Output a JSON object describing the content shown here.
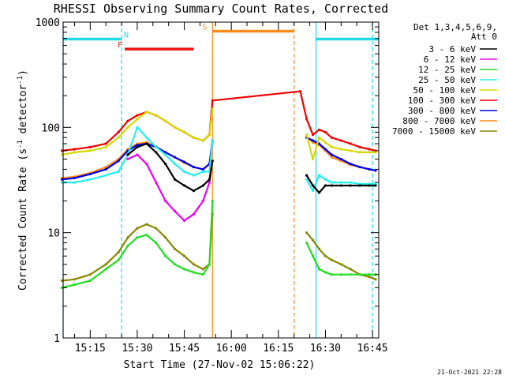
{
  "chart_data": {
    "type": "line",
    "title": "RHESSI Observing Summary Count Rates, Corrected",
    "xlabel": "Start Time (27-Nov-02 15:06:22)",
    "ylabel": "Corrected Count Rate (s⁻¹ detector⁻¹)",
    "ylabel_main": "Corrected Count Rate (s",
    "ylabel_sup1": "-1",
    "ylabel_mid": " detector",
    "ylabel_sup2": "-1",
    "ylabel_end": ")",
    "y_scale": "log",
    "ylim": [
      1,
      1000
    ],
    "xlim": [
      "15:06:22",
      "16:47:00"
    ],
    "x_ticks": [
      "15:15",
      "15:30",
      "15:45",
      "16:00",
      "16:15",
      "16:30",
      "16:45"
    ],
    "y_ticks": [
      "1",
      "10",
      "100",
      "1000"
    ],
    "legend_title": "Det 1,3,4,5,6,9,",
    "legend_subtitle": "Att 0",
    "footer_date": "21-Oct-2021 22:28",
    "flags": [
      {
        "label": "N",
        "color": "#22d8e8",
        "start": "15:06:22",
        "end": "15:25:00",
        "level": 690,
        "label_at": "15:26:30"
      },
      {
        "label": "N",
        "color": "#22d8e8",
        "start": "16:27:00",
        "end": "16:47:00",
        "level": 690,
        "label_at": null
      },
      {
        "label": "F",
        "color": "#ee1111",
        "start": "15:26:00",
        "end": "15:48:00",
        "level": 555,
        "label_at": "15:24:30"
      },
      {
        "label": "S",
        "color": "#ff8c1a",
        "start": "15:54:00",
        "end": "16:20:00",
        "level": 820,
        "label_at": "15:51:30"
      }
    ],
    "boundaries": [
      {
        "time": "15:06:22",
        "color": "#22d8e8",
        "style": "solid"
      },
      {
        "time": "15:25:00",
        "color": "#22d8e8",
        "style": "dashed"
      },
      {
        "time": "15:54:00",
        "color": "#ff8c1a",
        "style": "solid"
      },
      {
        "time": "16:20:00",
        "color": "#ff8c1a",
        "style": "dashed"
      },
      {
        "time": "16:27:00",
        "color": "#22d8e8",
        "style": "solid"
      },
      {
        "time": "16:45:00",
        "color": "#22d8e8",
        "style": "dashed"
      }
    ],
    "x": [
      "15:06",
      "15:10",
      "15:15",
      "15:20",
      "15:24",
      "15:27",
      "15:30",
      "15:33",
      "15:36",
      "15:39",
      "15:42",
      "15:45",
      "15:48",
      "15:51",
      "15:53",
      "15:54",
      "16:22",
      "16:24",
      "16:26",
      "16:28",
      "16:30",
      "16:32",
      "16:35",
      "16:38",
      "16:41",
      "16:44",
      "16:46"
    ],
    "series": [
      {
        "name": "3 - 6 keV",
        "color": "#000000",
        "values": [
          null,
          null,
          null,
          null,
          null,
          55,
          65,
          70,
          58,
          45,
          32,
          28,
          25,
          28,
          32,
          48,
          null,
          35,
          28,
          24,
          28,
          28,
          28,
          28,
          28,
          28,
          28
        ]
      },
      {
        "name": "6 - 12 keV",
        "color": "#ee00ee",
        "values": [
          null,
          null,
          null,
          null,
          null,
          50,
          55,
          45,
          30,
          20,
          16,
          13,
          15,
          20,
          30,
          48,
          null,
          null,
          null,
          null,
          null,
          null,
          null,
          null,
          null,
          null,
          null
        ]
      },
      {
        "name": "12 - 25 keV",
        "color": "#22dd22",
        "values": [
          3,
          3.2,
          3.5,
          4.5,
          5.5,
          7.5,
          9,
          9.5,
          8,
          6,
          5,
          4.5,
          4.2,
          4,
          5,
          20,
          null,
          8,
          6,
          4.5,
          4.2,
          4,
          4,
          4,
          4,
          4,
          4
        ]
      },
      {
        "name": "25 - 50 keV",
        "color": "#22f0f0",
        "values": [
          30,
          30,
          32,
          35,
          38,
          55,
          100,
          80,
          65,
          55,
          45,
          38,
          35,
          38,
          38,
          75,
          null,
          32,
          25,
          35,
          32,
          30,
          30,
          30,
          29,
          29,
          29
        ]
      },
      {
        "name": "50 - 100 keV",
        "color": "#d8d800",
        "values": [
          55,
          58,
          60,
          65,
          80,
          100,
          120,
          140,
          130,
          115,
          100,
          90,
          80,
          75,
          85,
          150,
          null,
          85,
          50,
          80,
          72,
          65,
          62,
          60,
          58,
          58,
          58
        ]
      },
      {
        "name": "100 - 300 keV",
        "color": "#ee0000",
        "values": [
          60,
          62,
          65,
          70,
          90,
          115,
          130,
          140,
          130,
          115,
          100,
          90,
          80,
          75,
          85,
          180,
          220,
          120,
          85,
          95,
          90,
          80,
          75,
          70,
          65,
          62,
          60
        ]
      },
      {
        "name": "300 - 800 keV",
        "color": "#0000ee",
        "values": [
          32,
          33,
          36,
          40,
          48,
          60,
          68,
          70,
          65,
          58,
          52,
          47,
          42,
          40,
          45,
          75,
          null,
          80,
          75,
          70,
          62,
          55,
          50,
          45,
          42,
          40,
          39
        ]
      },
      {
        "name": "800 - 7000 keV",
        "color": "#ff8c1a",
        "values": [
          33,
          34,
          37,
          42,
          50,
          62,
          70,
          72,
          66,
          58,
          52,
          46,
          42,
          40,
          45,
          72,
          null,
          82,
          72,
          68,
          60,
          52,
          48,
          44,
          42,
          40,
          39
        ]
      },
      {
        "name": "7000 - 15000 keV",
        "color": "#888800",
        "values": [
          3.5,
          3.6,
          4,
          5,
          6.5,
          9,
          11,
          12,
          11,
          9,
          7,
          6,
          5,
          4.5,
          5,
          15,
          null,
          10,
          8.5,
          7,
          6,
          5.5,
          5,
          4.5,
          4,
          3.8,
          3.6
        ]
      }
    ]
  }
}
